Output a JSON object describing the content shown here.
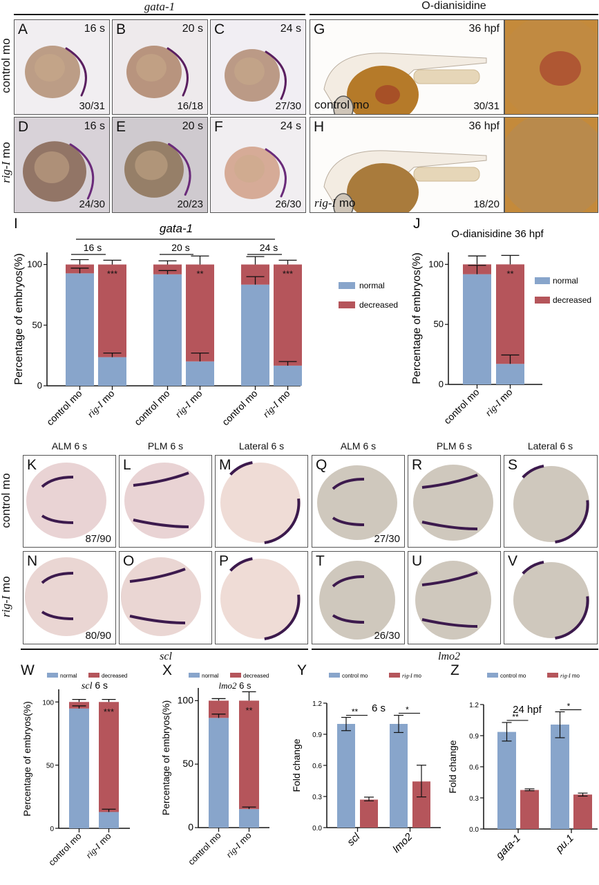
{
  "headers": {
    "gata1_top": "gata-1",
    "odianisidine_top": "O-dianisidine",
    "scl_section": "scl",
    "lmo2_section": "lmo2"
  },
  "row_labels": {
    "control": "control mo",
    "rig_gene": "rig-I",
    "rig_suffix": " mo"
  },
  "column_labels": [
    "ALM 6 s",
    "PLM 6 s",
    "Lateral 6 s",
    "ALM 6 s",
    "PLM 6 s",
    "Lateral 6 s"
  ],
  "panels": {
    "A": {
      "letter": "A",
      "stage": "16 s",
      "count": "30/31"
    },
    "B": {
      "letter": "B",
      "stage": "20 s",
      "count": "16/18"
    },
    "C": {
      "letter": "C",
      "stage": "24 s",
      "count": "27/30"
    },
    "D": {
      "letter": "D",
      "stage": "16 s",
      "count": "24/30"
    },
    "E": {
      "letter": "E",
      "stage": "20 s",
      "count": "20/23"
    },
    "F": {
      "letter": "F",
      "stage": "24 s",
      "count": "26/30"
    },
    "G": {
      "letter": "G",
      "stage": "36 hpf",
      "count": "30/31",
      "condition": "control mo"
    },
    "H": {
      "letter": "H",
      "stage": "36 hpf",
      "count": "18/20",
      "condition_gene": "rig-I",
      "condition_suffix": " mo"
    },
    "K": {
      "letter": "K",
      "count": "87/90"
    },
    "L": {
      "letter": "L"
    },
    "M": {
      "letter": "M"
    },
    "N": {
      "letter": "N",
      "count": "80/90"
    },
    "O": {
      "letter": "O"
    },
    "P": {
      "letter": "P"
    },
    "Q": {
      "letter": "Q",
      "count": "27/30"
    },
    "R": {
      "letter": "R"
    },
    "S": {
      "letter": "S"
    },
    "T": {
      "letter": "T",
      "count": "26/30"
    },
    "U": {
      "letter": "U"
    },
    "V": {
      "letter": "V"
    }
  },
  "colors": {
    "normal": "#88a5cb",
    "decreased": "#b5555b",
    "axis": "#111111"
  },
  "chart_data": [
    {
      "id": "I",
      "letter": "I",
      "type": "bar",
      "stacked": true,
      "title": "gata-1",
      "group_labels": [
        "16 s",
        "20 s",
        "24 s"
      ],
      "categories": [
        "control mo",
        "rig-I mo",
        "control mo",
        "rig-I mo",
        "control mo",
        "rig-I mo"
      ],
      "series": [
        {
          "name": "normal",
          "values": [
            92.7,
            23.6,
            91.9,
            20.1,
            83.4,
            16.6
          ],
          "err_high": [
            97,
            27,
            95,
            27,
            90,
            20
          ]
        },
        {
          "name": "decreased",
          "values": [
            7.3,
            76.4,
            8.1,
            79.9,
            16.6,
            83.4
          ],
          "err_high": [
            104,
            103.5,
            103,
            107,
            106.5,
            103.5
          ]
        }
      ],
      "significance": [
        "",
        "***",
        "",
        "**",
        "",
        "***"
      ],
      "ylabel": "Percentage of embryos(%)",
      "xlabel": "",
      "ylim": [
        0,
        110
      ],
      "yticks": [
        0,
        50,
        100
      ],
      "legend": [
        "normal",
        "decreased"
      ],
      "legend_position": "right"
    },
    {
      "id": "J",
      "letter": "J",
      "type": "bar",
      "stacked": true,
      "title": "O-dianisidine 36 hpf",
      "categories": [
        "control mo",
        "rig-I mo"
      ],
      "series": [
        {
          "name": "normal",
          "values": [
            91.8,
            17.1
          ],
          "err_high": [
            99.2,
            24.5
          ]
        },
        {
          "name": "decreased",
          "values": [
            8.2,
            82.9
          ],
          "err_high": [
            107,
            107.5
          ]
        }
      ],
      "significance": [
        "",
        "**"
      ],
      "ylabel": "Percentage of embryos(%)",
      "xlabel": "",
      "ylim": [
        0,
        110
      ],
      "yticks": [
        0,
        50,
        100
      ],
      "legend": [
        "normal",
        "decreased"
      ],
      "legend_position": "right"
    },
    {
      "id": "W",
      "letter": "W",
      "type": "bar",
      "stacked": true,
      "title_gene": "scl",
      "title_suffix": " 6 s",
      "categories": [
        "control mo",
        "rig-I mo"
      ],
      "series": [
        {
          "name": "normal",
          "values": [
            94.8,
            12.9
          ],
          "err_high": [
            96.9,
            15.1
          ]
        },
        {
          "name": "decreased",
          "values": [
            5.2,
            87.1
          ],
          "err_high": [
            102,
            102
          ]
        }
      ],
      "significance": [
        "",
        "***"
      ],
      "ylabel": "Percentage of embryos(%)",
      "xlabel": "",
      "ylim": [
        0,
        110
      ],
      "yticks": [
        0,
        50,
        100
      ],
      "legend": [
        "normal",
        "decreased"
      ],
      "legend_position": "top"
    },
    {
      "id": "X",
      "letter": "X",
      "type": "bar",
      "stacked": true,
      "title_gene": "lmo2",
      "title_suffix": " 6 s",
      "categories": [
        "control mo",
        "rig-I mo"
      ],
      "series": [
        {
          "name": "normal",
          "values": [
            86.4,
            14.6
          ],
          "err_high": [
            89.4,
            16.2
          ]
        },
        {
          "name": "decreased",
          "values": [
            13.6,
            85.4
          ],
          "err_high": [
            101.6,
            107
          ]
        }
      ],
      "significance": [
        "",
        "**"
      ],
      "ylabel": "Percentage of embryos(%)",
      "xlabel": "",
      "ylim": [
        0,
        110
      ],
      "yticks": [
        0,
        50,
        100
      ],
      "legend": [
        "normal",
        "decreased"
      ],
      "legend_position": "top"
    },
    {
      "id": "Y",
      "letter": "Y",
      "type": "bar",
      "stacked": false,
      "title": "6 s",
      "categories": [
        "scl",
        "lmo2"
      ],
      "series": [
        {
          "name": "control mo",
          "values": [
            1.0,
            1.0
          ],
          "err_low": [
            0.935,
            0.917
          ],
          "err_high": [
            1.063,
            1.083
          ]
        },
        {
          "name": "rig-I mo",
          "values": [
            0.27,
            0.445
          ],
          "err_low": [
            0.258,
            0.296
          ],
          "err_high": [
            0.294,
            0.602
          ]
        }
      ],
      "significance": [
        "**",
        "*"
      ],
      "ylabel": "Fold change",
      "xlabel": "",
      "ylim": [
        0,
        1.2
      ],
      "yticks": [
        "0.0",
        "0.3",
        "0.6",
        "0.9",
        "1.2"
      ],
      "legend": [
        "control mo",
        "rig-I mo"
      ],
      "legend_position": "top"
    },
    {
      "id": "Z",
      "letter": "Z",
      "type": "bar",
      "stacked": false,
      "title": "24 hpf",
      "categories": [
        "gata-1",
        "pu.1"
      ],
      "series": [
        {
          "name": "control mo",
          "values": [
            0.936,
            1.007
          ],
          "err_low": [
            0.848,
            0.88
          ],
          "err_high": [
            1.027,
            1.13
          ]
        },
        {
          "name": "rig-I mo",
          "values": [
            0.376,
            0.332
          ],
          "err_low": [
            0.369,
            0.317
          ],
          "err_high": [
            0.387,
            0.346
          ]
        }
      ],
      "significance": [
        "**",
        "*"
      ],
      "ylabel": "Fold change",
      "xlabel": "",
      "ylim": [
        0,
        1.2
      ],
      "yticks": [
        "0.0",
        "0.3",
        "0.6",
        "0.9",
        "1.2"
      ],
      "legend": [
        "control mo",
        "rig-I mo"
      ],
      "legend_position": "top"
    }
  ]
}
